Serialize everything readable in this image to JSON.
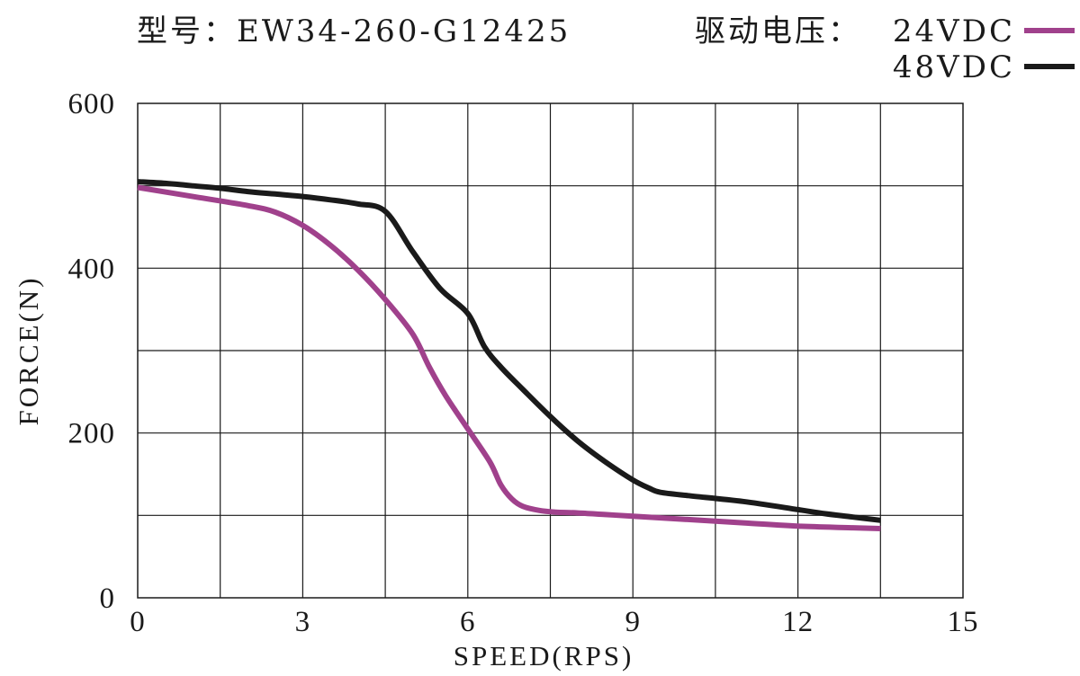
{
  "header": {
    "model_label": "型号：EW34-260-G12425",
    "voltage_label": "驱动电压："
  },
  "chart_data": {
    "type": "line",
    "xlabel": "SPEED(RPS)",
    "ylabel": "FORCE(N)",
    "xlim": [
      0,
      15
    ],
    "ylim": [
      0,
      600
    ],
    "x_ticks": [
      "0",
      "3",
      "6",
      "9",
      "12",
      "15"
    ],
    "y_ticks": [
      "0",
      "200",
      "400",
      "600"
    ],
    "grid": true,
    "legend_position": "top-right",
    "series": [
      {
        "name": "24VDC",
        "color": "#a0418c",
        "points": [
          [
            0,
            498
          ],
          [
            1,
            487
          ],
          [
            2,
            476
          ],
          [
            2.5,
            468
          ],
          [
            3,
            452
          ],
          [
            3.5,
            428
          ],
          [
            4,
            398
          ],
          [
            4.5,
            362
          ],
          [
            5,
            320
          ],
          [
            5.3,
            280
          ],
          [
            5.6,
            245
          ],
          [
            6,
            205
          ],
          [
            6.4,
            165
          ],
          [
            6.6,
            137
          ],
          [
            6.8,
            120
          ],
          [
            7,
            111
          ],
          [
            7.3,
            106
          ],
          [
            7.6,
            104
          ],
          [
            8,
            103
          ],
          [
            8.5,
            101
          ],
          [
            9,
            99
          ],
          [
            10,
            95
          ],
          [
            11,
            91
          ],
          [
            12,
            87
          ],
          [
            13,
            85
          ],
          [
            13.5,
            84
          ]
        ]
      },
      {
        "name": "48VDC",
        "color": "#1a1a1a",
        "points": [
          [
            0,
            505
          ],
          [
            0.5,
            503
          ],
          [
            1,
            500
          ],
          [
            1.5,
            497
          ],
          [
            2,
            493
          ],
          [
            2.5,
            490
          ],
          [
            3,
            487
          ],
          [
            3.5,
            483
          ],
          [
            4,
            478
          ],
          [
            4.5,
            469
          ],
          [
            5,
            420
          ],
          [
            5.5,
            375
          ],
          [
            6,
            345
          ],
          [
            6.3,
            305
          ],
          [
            6.6,
            280
          ],
          [
            7,
            253
          ],
          [
            7.5,
            220
          ],
          [
            8,
            190
          ],
          [
            8.5,
            165
          ],
          [
            9,
            143
          ],
          [
            9.3,
            133
          ],
          [
            9.5,
            128
          ],
          [
            10,
            124
          ],
          [
            11,
            117
          ],
          [
            12,
            107
          ],
          [
            12.5,
            102
          ],
          [
            13,
            98
          ],
          [
            13.5,
            94
          ]
        ]
      }
    ]
  }
}
